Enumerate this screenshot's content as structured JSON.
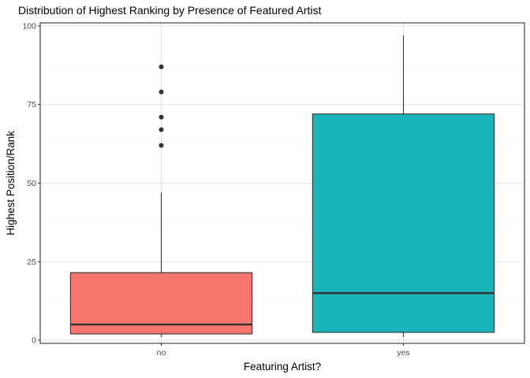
{
  "chart_data": {
    "type": "boxplot",
    "title": "Distribution  of Highest Ranking by Presence of Featured Artist",
    "xlabel": "Featuring Artist?",
    "ylabel": "Highest Position/Rank",
    "ylim": [
      -1,
      101
    ],
    "y_ticks": [
      0,
      25,
      50,
      75,
      100
    ],
    "grid": true,
    "legend": "none",
    "categories": [
      "no",
      "yes"
    ],
    "boxes": [
      {
        "category": "no",
        "color": "#F8766D",
        "whisker_low": 1,
        "q1": 2,
        "median": 5,
        "q3": 21.5,
        "whisker_high": 47,
        "outliers": [
          62,
          67,
          71,
          79,
          87
        ]
      },
      {
        "category": "yes",
        "color": "#1AB5BA",
        "whisker_low": 1,
        "q1": 2.5,
        "median": 15,
        "q3": 72,
        "whisker_high": 97,
        "outliers": []
      }
    ]
  }
}
